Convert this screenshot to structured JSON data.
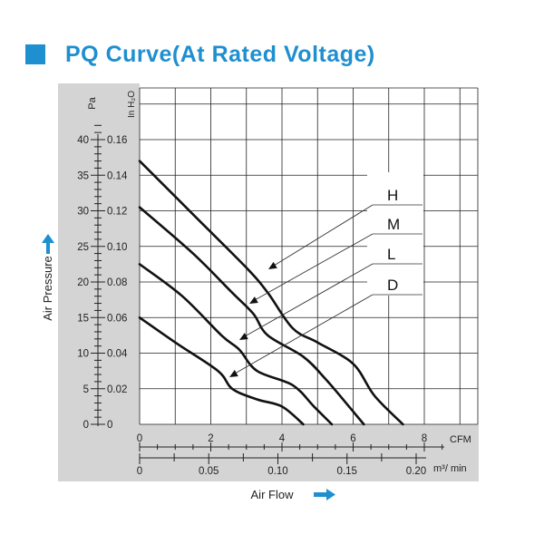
{
  "title": "PQ Curve(At Rated Voltage)",
  "colors": {
    "accent": "#1e8fcf",
    "panel": "#d4d4d4",
    "curve": "#111111",
    "arrow": "#1e8fcf"
  },
  "chart_data": {
    "type": "line",
    "title": "PQ Curve(At Rated Voltage)",
    "xlabel": "Air Flow",
    "ylabel": "Air Pressure",
    "x_unit_primary": "CFM",
    "x_unit_secondary": "m³/ min",
    "y_unit_primary": "Pa",
    "y_unit_secondary": "In H₂O",
    "xlim": [
      0,
      9.5
    ],
    "ylim": [
      0,
      47
    ],
    "grid": true,
    "x_ticks_cfm": [
      "0",
      "2",
      "4",
      "6",
      "8"
    ],
    "x_ticks_m3": [
      "0",
      "0.05",
      "0.10",
      "0.15",
      "0.20"
    ],
    "y_ticks_pa": [
      "0",
      "5",
      "10",
      "15",
      "20",
      "25",
      "30",
      "35",
      "40"
    ],
    "y_ticks_inh2o": [
      "0",
      "0.02",
      "0.04",
      "0.06",
      "0.08",
      "0.10",
      "0.12",
      "0.14",
      "0.16"
    ],
    "legend": [
      "H",
      "M",
      "L",
      "D"
    ],
    "series": [
      {
        "name": "H",
        "points": [
          [
            0,
            37.0
          ],
          [
            1.5,
            29.5
          ],
          [
            3.0,
            22.0
          ],
          [
            3.6,
            18.5
          ],
          [
            4.3,
            13.5
          ],
          [
            5.0,
            11.5
          ],
          [
            6.0,
            8.5
          ],
          [
            6.6,
            4.0
          ],
          [
            7.4,
            0
          ]
        ]
      },
      {
        "name": "M",
        "points": [
          [
            0,
            30.5
          ],
          [
            1.5,
            24.0
          ],
          [
            2.6,
            18.5
          ],
          [
            3.2,
            15.5
          ],
          [
            3.6,
            12.5
          ],
          [
            4.6,
            9.5
          ],
          [
            5.2,
            6.5
          ],
          [
            5.8,
            3.0
          ],
          [
            6.3,
            0
          ]
        ]
      },
      {
        "name": "L",
        "points": [
          [
            0,
            22.5
          ],
          [
            1.2,
            18.0
          ],
          [
            2.3,
            12.5
          ],
          [
            2.8,
            10.5
          ],
          [
            3.3,
            7.5
          ],
          [
            4.3,
            5.5
          ],
          [
            4.9,
            2.5
          ],
          [
            5.4,
            0
          ]
        ]
      },
      {
        "name": "D",
        "points": [
          [
            0,
            15.0
          ],
          [
            1.0,
            11.5
          ],
          [
            2.2,
            7.5
          ],
          [
            2.6,
            5.0
          ],
          [
            3.3,
            3.5
          ],
          [
            4.0,
            2.5
          ],
          [
            4.6,
            0
          ]
        ]
      }
    ]
  }
}
